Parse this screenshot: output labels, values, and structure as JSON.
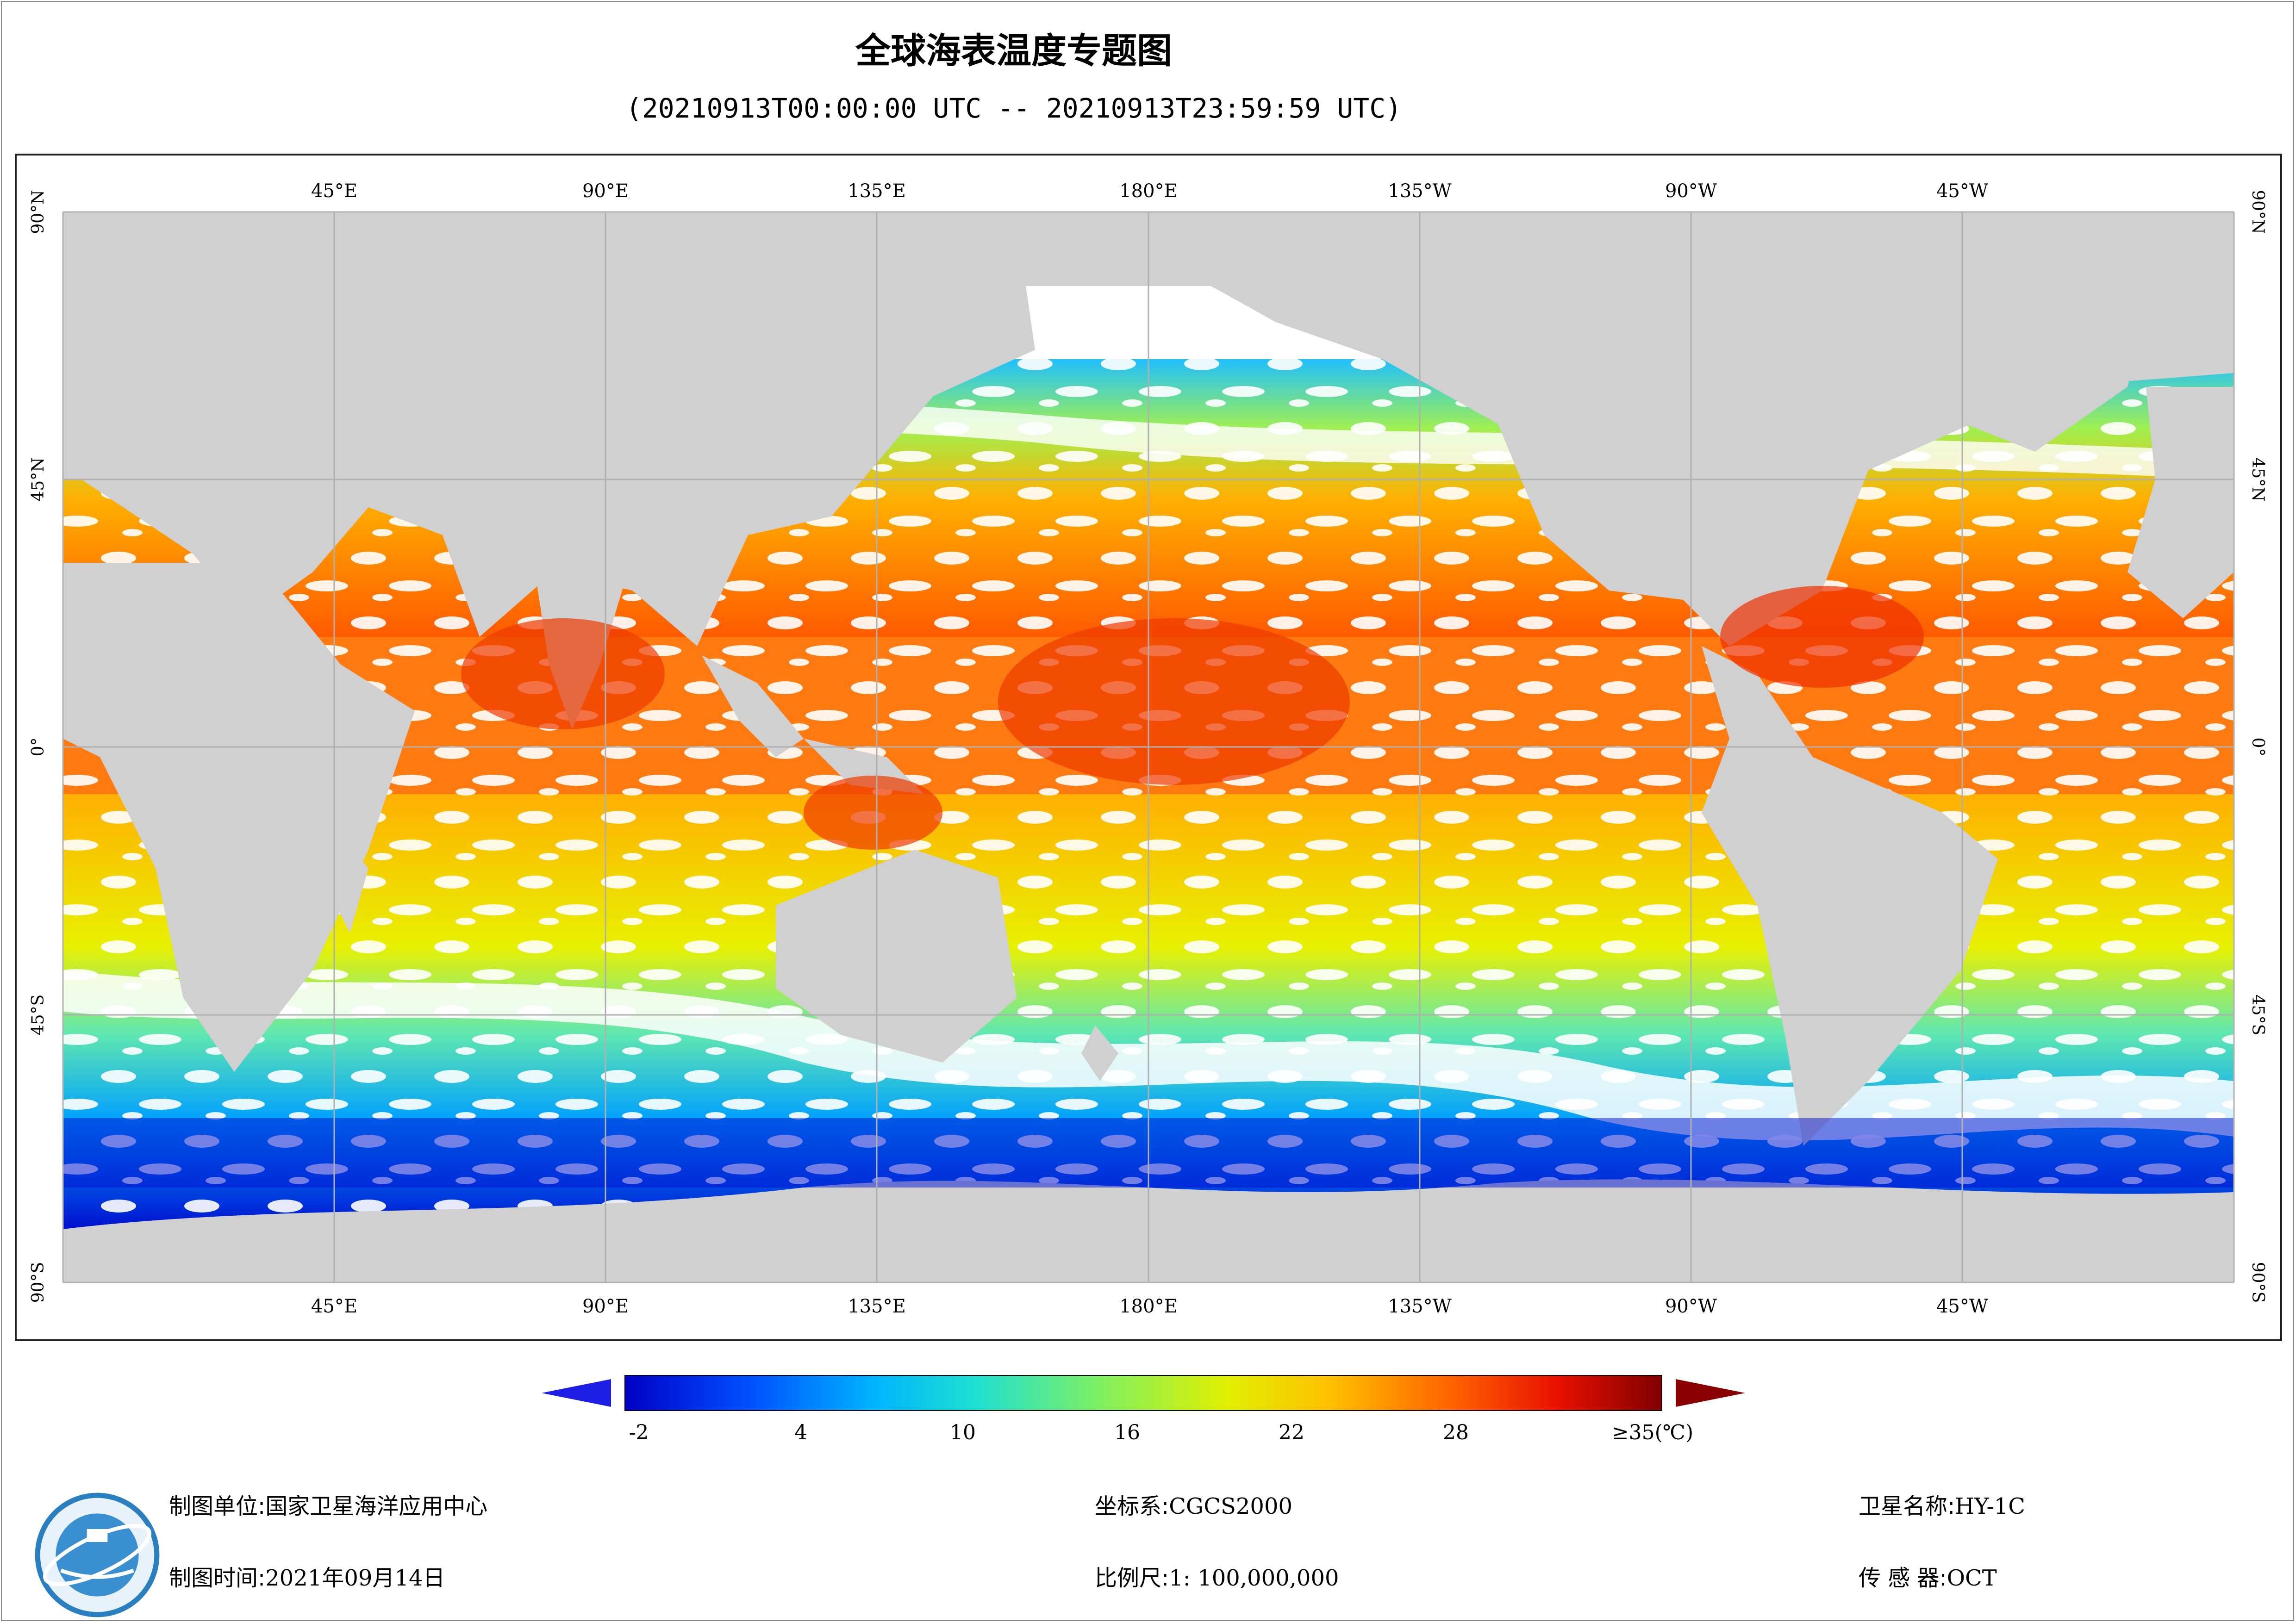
{
  "title": "全球海表温度专题图",
  "subtitle": "(20210913T00:00:00 UTC -- 20210913T23:59:59 UTC)",
  "map": {
    "lon_labels_top": [
      "45°E",
      "90°E",
      "135°E",
      "180°E",
      "135°W",
      "90°W",
      "45°W"
    ],
    "lon_labels_bottom": [
      "45°E",
      "90°E",
      "135°E",
      "180°E",
      "135°W",
      "90°W",
      "45°W"
    ],
    "lat_labels_left": [
      "90°N",
      "45°N",
      "0°",
      "45°S",
      "90°S"
    ],
    "lat_labels_right": [
      "90°N",
      "45°N",
      "0°",
      "45°S",
      "90°S"
    ],
    "land_color": "#d0d0d0",
    "cloud_color": "#ffffff",
    "grid_color": "#b0b0b0"
  },
  "colorbar": {
    "ticks": [
      "-2",
      "4",
      "10",
      "16",
      "22",
      "28"
    ],
    "max_label": "≥35(℃)",
    "under_color": "#1e1ee6",
    "over_color": "#8b0000",
    "stops": [
      "#0000c8",
      "#0050ff",
      "#00b4ff",
      "#20e0d0",
      "#80f060",
      "#e0f000",
      "#ffc000",
      "#ff6000",
      "#e81000",
      "#800000"
    ]
  },
  "footer": {
    "unit_label": "制图单位:",
    "unit_value": "国家卫星海洋应用中心",
    "time_label": "制图时间:",
    "time_value": "2021年09月14日",
    "crs_label": "坐标系:",
    "crs_value": "CGCS2000",
    "scale_label": "比例尺:",
    "scale_value": "1: 100,000,000",
    "sat_label": "卫星名称:",
    "sat_value": "HY-1C",
    "sensor_label": "传 感 器:",
    "sensor_value": "OCT"
  },
  "logo_icon": "nsoas-emblem-icon"
}
